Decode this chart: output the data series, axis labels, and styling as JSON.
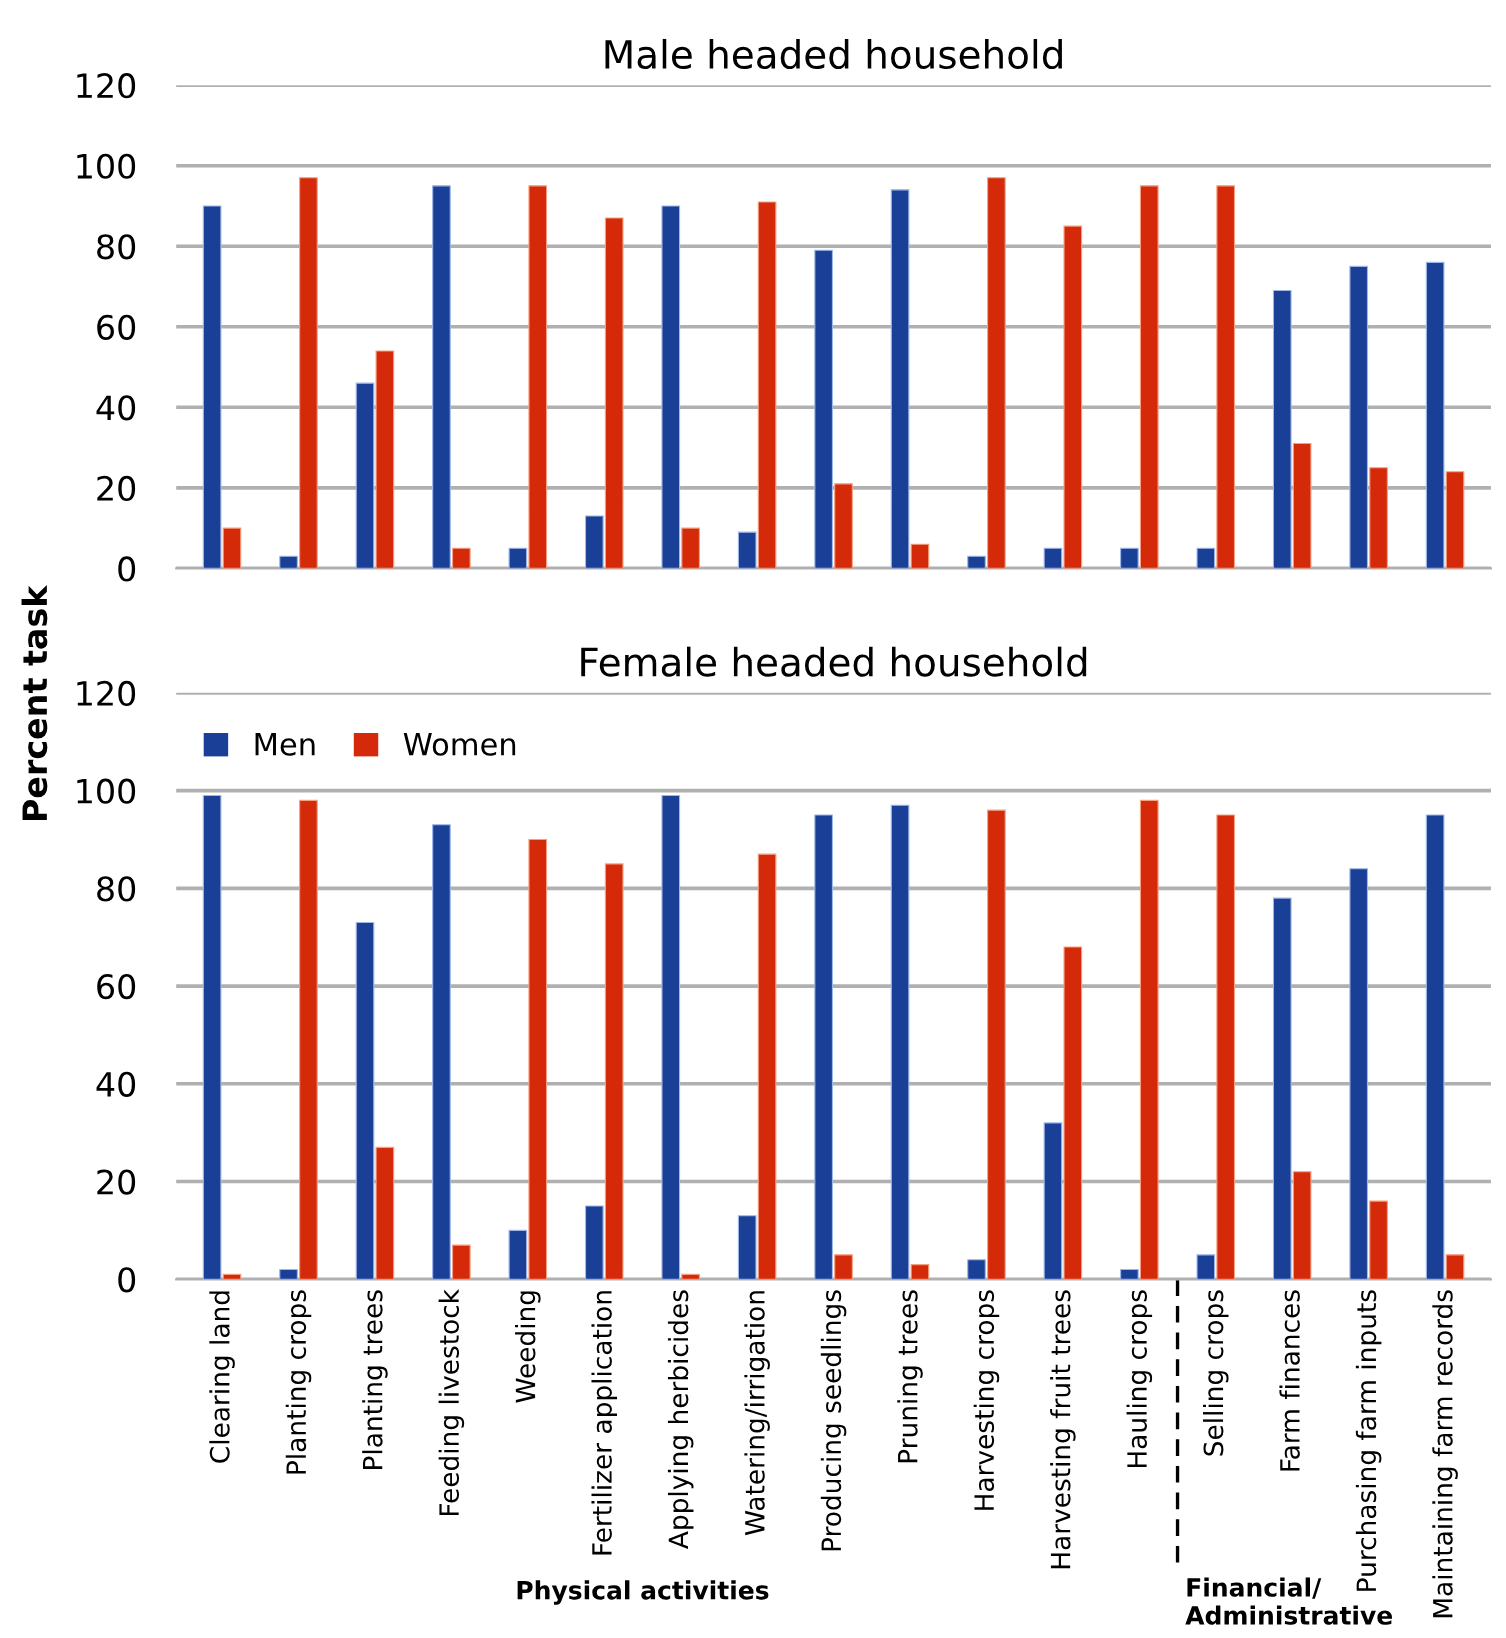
{
  "chart_data": [
    {
      "type": "bar",
      "title": "Male headed household",
      "ylabel": "Percent task",
      "categories": [
        null,
        null,
        null,
        null,
        null,
        null,
        null,
        null,
        null,
        null,
        null,
        null,
        null,
        null,
        null,
        null,
        null
      ],
      "series": [
        {
          "color": "#1a3f96",
          "values": [
            90,
            3,
            46,
            95,
            5,
            13,
            90,
            9,
            79,
            94,
            3,
            5,
            5,
            5,
            69,
            75,
            76
          ]
        },
        {
          "color": "#d42a0a",
          "values": [
            10,
            97,
            54,
            5,
            95,
            87,
            10,
            91,
            21,
            6,
            97,
            85,
            95,
            95,
            31,
            25,
            24
          ]
        }
      ],
      "ylim": [
        0,
        120
      ],
      "yticks": [
        0,
        20,
        40,
        60,
        80,
        100,
        120
      ],
      "grid": "y",
      "tick_labels": "y"
    },
    {
      "type": "bar",
      "title": "Female headed household",
      "categories": [
        "Clearing land",
        "Planting crops",
        "Planting trees",
        "Feeding livestock",
        "Weeding",
        "Fertilizer application",
        "Applying herbicides",
        "Watering/irrigation",
        "Producing seedlings",
        "Pruning trees",
        "Harvesting crops",
        "Harvesting fruit trees",
        "Hauling crops",
        "Selling crops",
        "Farm finances",
        "Purchasing farm inputs",
        "Maintaining farm records"
      ],
      "series": [
        {
          "name": "Men",
          "color": "#1a3f96",
          "values": [
            99,
            2,
            73,
            93,
            10,
            15,
            99,
            13,
            95,
            97,
            4,
            32,
            2,
            5,
            78,
            84,
            95
          ]
        },
        {
          "name": "Women",
          "color": "#d42a0a",
          "values": [
            1,
            98,
            27,
            7,
            90,
            85,
            1,
            87,
            5,
            3,
            96,
            68,
            98,
            95,
            22,
            16,
            5
          ]
        }
      ],
      "ylim": [
        0,
        120
      ],
      "yticks": [
        0,
        20,
        40,
        60,
        80,
        100,
        120
      ],
      "grid": "y",
      "legend": "top left",
      "annotations": [
        "Physical activities",
        "Financial/\nAdministrative"
      ]
    }
  ]
}
